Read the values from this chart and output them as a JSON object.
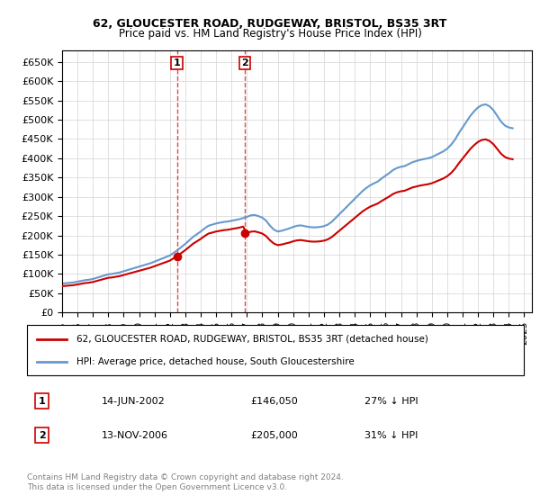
{
  "title": "62, GLOUCESTER ROAD, RUDGEWAY, BRISTOL, BS35 3RT",
  "subtitle": "Price paid vs. HM Land Registry's House Price Index (HPI)",
  "ylim": [
    0,
    680000
  ],
  "yticks": [
    0,
    50000,
    100000,
    150000,
    200000,
    250000,
    300000,
    350000,
    400000,
    450000,
    500000,
    550000,
    600000,
    650000
  ],
  "legend_line1": "62, GLOUCESTER ROAD, RUDGEWAY, BRISTOL, BS35 3RT (detached house)",
  "legend_line2": "HPI: Average price, detached house, South Gloucestershire",
  "transaction1_label": "1",
  "transaction1_date": "14-JUN-2002",
  "transaction1_price": "£146,050",
  "transaction1_hpi": "27% ↓ HPI",
  "transaction2_label": "2",
  "transaction2_date": "13-NOV-2006",
  "transaction2_price": "£205,000",
  "transaction2_hpi": "31% ↓ HPI",
  "footnote": "Contains HM Land Registry data © Crown copyright and database right 2024.\nThis data is licensed under the Open Government Licence v3.0.",
  "property_color": "#cc0000",
  "hpi_color": "#6699cc",
  "transaction1_x": 2002.45,
  "transaction2_x": 2006.87,
  "transaction1_y": 146050,
  "transaction2_y": 205000,
  "vline1_x": 2002.45,
  "vline2_x": 2006.87,
  "hpi_years": [
    1995,
    1995.25,
    1995.5,
    1995.75,
    1996,
    1996.25,
    1996.5,
    1996.75,
    1997,
    1997.25,
    1997.5,
    1997.75,
    1998,
    1998.25,
    1998.5,
    1998.75,
    1999,
    1999.25,
    1999.5,
    1999.75,
    2000,
    2000.25,
    2000.5,
    2000.75,
    2001,
    2001.25,
    2001.5,
    2001.75,
    2002,
    2002.25,
    2002.5,
    2002.75,
    2003,
    2003.25,
    2003.5,
    2003.75,
    2004,
    2004.25,
    2004.5,
    2004.75,
    2005,
    2005.25,
    2005.5,
    2005.75,
    2006,
    2006.25,
    2006.5,
    2006.75,
    2007,
    2007.25,
    2007.5,
    2007.75,
    2008,
    2008.25,
    2008.5,
    2008.75,
    2009,
    2009.25,
    2009.5,
    2009.75,
    2010,
    2010.25,
    2010.5,
    2010.75,
    2011,
    2011.25,
    2011.5,
    2011.75,
    2012,
    2012.25,
    2012.5,
    2012.75,
    2013,
    2013.25,
    2013.5,
    2013.75,
    2014,
    2014.25,
    2014.5,
    2014.75,
    2015,
    2015.25,
    2015.5,
    2015.75,
    2016,
    2016.25,
    2016.5,
    2016.75,
    2017,
    2017.25,
    2017.5,
    2017.75,
    2018,
    2018.25,
    2018.5,
    2018.75,
    2019,
    2019.25,
    2019.5,
    2019.75,
    2020,
    2020.25,
    2020.5,
    2020.75,
    2021,
    2021.25,
    2021.5,
    2021.75,
    2022,
    2022.25,
    2022.5,
    2022.75,
    2023,
    2023.25,
    2023.5,
    2023.75,
    2024,
    2024.25
  ],
  "hpi_values": [
    75000,
    76000,
    77000,
    78000,
    80000,
    82000,
    84000,
    85000,
    87000,
    90000,
    93000,
    96000,
    99000,
    100000,
    102000,
    104000,
    107000,
    110000,
    113000,
    116000,
    119000,
    122000,
    125000,
    128000,
    132000,
    136000,
    140000,
    144000,
    148000,
    155000,
    162000,
    170000,
    178000,
    187000,
    196000,
    203000,
    210000,
    218000,
    225000,
    228000,
    231000,
    233000,
    235000,
    236000,
    238000,
    240000,
    242000,
    245000,
    248000,
    252000,
    253000,
    250000,
    246000,
    238000,
    225000,
    215000,
    210000,
    212000,
    215000,
    218000,
    222000,
    225000,
    226000,
    224000,
    222000,
    221000,
    221000,
    222000,
    224000,
    228000,
    235000,
    245000,
    255000,
    265000,
    275000,
    285000,
    295000,
    305000,
    315000,
    323000,
    330000,
    335000,
    340000,
    348000,
    355000,
    362000,
    370000,
    375000,
    378000,
    380000,
    385000,
    390000,
    393000,
    396000,
    398000,
    400000,
    403000,
    408000,
    413000,
    418000,
    425000,
    435000,
    448000,
    465000,
    480000,
    495000,
    510000,
    522000,
    532000,
    538000,
    540000,
    535000,
    525000,
    510000,
    495000,
    485000,
    480000,
    478000
  ],
  "property_years": [
    2002.45,
    2006.87
  ],
  "property_values": [
    146050,
    205000
  ],
  "xlim_start": 1995,
  "xlim_end": 2025.5,
  "xtick_years": [
    1995,
    1996,
    1997,
    1998,
    1999,
    2000,
    2001,
    2002,
    2003,
    2004,
    2005,
    2006,
    2007,
    2008,
    2009,
    2010,
    2011,
    2012,
    2013,
    2014,
    2015,
    2016,
    2017,
    2018,
    2019,
    2020,
    2021,
    2022,
    2023,
    2024,
    2025
  ]
}
